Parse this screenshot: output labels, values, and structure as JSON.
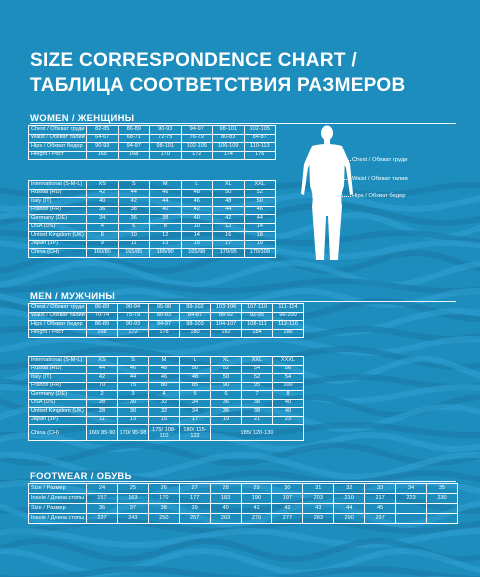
{
  "title": {
    "line1": "SIZE CORRESPONDENCE CHART /",
    "line2": "ТАБЛИЦА СООТВЕТСТВИЯ РАЗМЕРОВ"
  },
  "women": {
    "heading": "WOMEN / ЖЕНЩИНЫ",
    "measurements": [
      {
        "label": "Chest / Обхват груди",
        "values": [
          "82-85",
          "86-89",
          "90-93",
          "94-97",
          "98-101",
          "102-105"
        ]
      },
      {
        "label": "Waist / Обхват талии",
        "values": [
          "64-67",
          "68-71",
          "72-75",
          "76-79",
          "80-83",
          "84-87"
        ]
      },
      {
        "label": "Hips / Обхват бедер",
        "values": [
          "90-93",
          "94-97",
          "98-101",
          "102-105",
          "106-109",
          "110-113"
        ]
      },
      {
        "label": "Height / Рост",
        "values": [
          "165",
          "168",
          "170",
          "172",
          "174",
          "176"
        ]
      }
    ],
    "sizes": [
      {
        "label": "International (S-M-L)",
        "values": [
          "XS",
          "S",
          "M",
          "L",
          "XL",
          "XXL"
        ]
      },
      {
        "label": "Russia (RU)",
        "values": [
          "42",
          "44",
          "46",
          "48",
          "50",
          "52"
        ]
      },
      {
        "label": "Italy (IT)",
        "values": [
          "40",
          "42",
          "44",
          "46",
          "48",
          "50"
        ]
      },
      {
        "label": "France (FR)",
        "values": [
          "36",
          "38",
          "40",
          "42",
          "44",
          "46"
        ]
      },
      {
        "label": "Germany (DE)",
        "values": [
          "34",
          "36",
          "38",
          "40",
          "42",
          "44"
        ]
      },
      {
        "label": "USA (US)",
        "values": [
          "4",
          "6",
          "8",
          "10",
          "12",
          "14"
        ]
      },
      {
        "label": "United Kingdom (UK)",
        "values": [
          "8",
          "10",
          "12",
          "14",
          "16",
          "18"
        ]
      },
      {
        "label": "Japan (JP)",
        "values": [
          "9",
          "11",
          "13",
          "15",
          "17",
          "19"
        ]
      },
      {
        "label": "China (CH)",
        "values": [
          "160/80",
          "165/85",
          "165/90",
          "165/98",
          "170/95",
          "170/100"
        ]
      }
    ]
  },
  "figure": {
    "chest_label": "Chest / Обхват груди",
    "waist_label": "Waist / Обхват талии",
    "hips_label": "Hips / Обхват бедер"
  },
  "men": {
    "heading": "MEN / МУЖЧИНЫ",
    "measurements": [
      {
        "label": "Chest / Обхват груди",
        "values": [
          "86-89",
          "90-94",
          "95-98",
          "99-102",
          "103-106",
          "107-110",
          "111-114"
        ]
      },
      {
        "label": "Waist / Обхват талии",
        "values": [
          "70-74",
          "75-79",
          "80-83",
          "84-87",
          "88-92",
          "92-95",
          "96-100"
        ]
      },
      {
        "label": "Hips / Обхват бедер",
        "values": [
          "86-89",
          "90-93",
          "94-97",
          "98-103",
          "104-107",
          "108-111",
          "112-116"
        ]
      },
      {
        "label": "Height / Рост",
        "values": [
          "168",
          "172",
          "178",
          "180",
          "182",
          "184",
          "186"
        ]
      }
    ],
    "sizes": [
      {
        "label": "International (S-M-L)",
        "values": [
          "XS",
          "S",
          "M",
          "L",
          "XL",
          "XXL",
          "XXXL"
        ]
      },
      {
        "label": "Russia (RU)",
        "values": [
          "44",
          "46",
          "48",
          "50",
          "52",
          "54",
          "56"
        ]
      },
      {
        "label": "Italy (IT)",
        "values": [
          "42",
          "44",
          "46",
          "48",
          "50",
          "52",
          "54"
        ]
      },
      {
        "label": "France (FR)",
        "values": [
          "70",
          "75",
          "80",
          "85",
          "90",
          "95",
          "100"
        ]
      },
      {
        "label": "Germany (DE)",
        "values": [
          "2",
          "3",
          "4",
          "5",
          "6",
          "7",
          "8"
        ]
      },
      {
        "label": "USA (US)",
        "values": [
          "28",
          "30",
          "32",
          "34",
          "36",
          "38",
          "40"
        ]
      },
      {
        "label": "United Kingdom (UK)",
        "values": [
          "28",
          "30",
          "32",
          "34",
          "36",
          "38",
          "40"
        ]
      },
      {
        "label": "Japan (JP)",
        "values": [
          "11",
          "13",
          "15",
          "17",
          "19",
          "21",
          "23"
        ]
      }
    ],
    "china": {
      "label": "China (CH)",
      "values": [
        "160/ 85-90",
        "170/ 95-98",
        "175/ 108-110",
        "180/ 115-122",
        "185/ 120-130"
      ]
    }
  },
  "footwear": {
    "heading": "FOOTWEAR / ОБУВЬ",
    "rows": [
      {
        "label": "Size / Размер",
        "values": [
          "24",
          "25",
          "26",
          "27",
          "28",
          "29",
          "30",
          "31",
          "32",
          "33",
          "34",
          "35"
        ]
      },
      {
        "label": "Insole / Длина стопы",
        "values": [
          "157",
          "163",
          "170",
          "177",
          "183",
          "190",
          "197",
          "203",
          "210",
          "217",
          "223",
          "230"
        ]
      },
      {
        "label": "Size / Размер",
        "values": [
          "36",
          "37",
          "38",
          "39",
          "40",
          "41",
          "42",
          "43",
          "44",
          "45"
        ]
      },
      {
        "label": "Insole / Длина стопы",
        "values": [
          "237",
          "243",
          "250",
          "257",
          "263",
          "270",
          "277",
          "283",
          "290",
          "297"
        ]
      }
    ]
  },
  "colors": {
    "background": "#1d8dbd",
    "wave_light": "#2fa3d3",
    "wave_dark": "#1779a6"
  }
}
